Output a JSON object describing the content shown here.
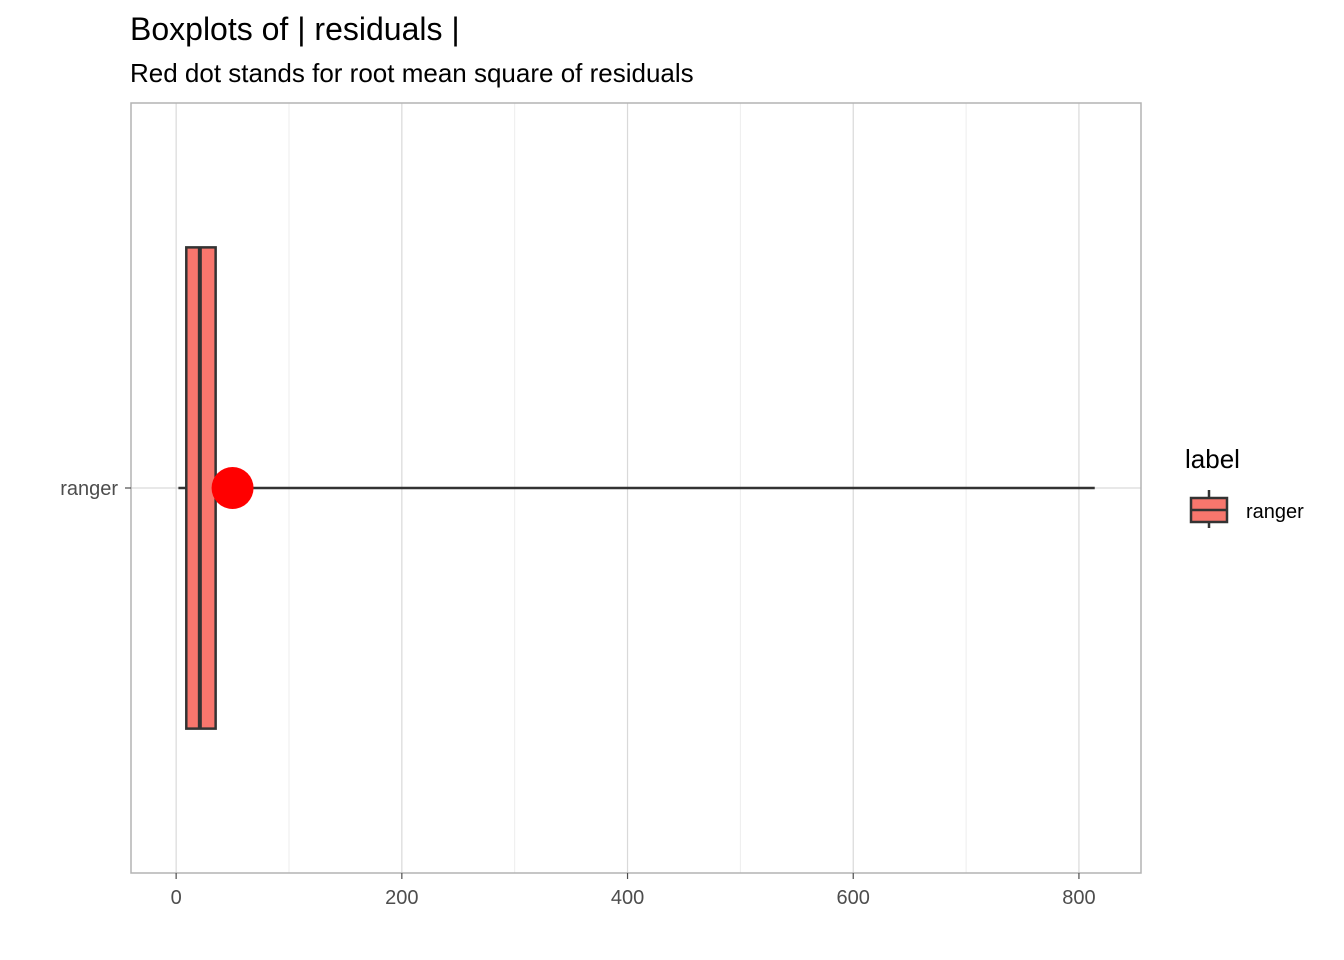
{
  "chart_data": {
    "type": "boxplot",
    "title": "Boxplots of | residuals |",
    "subtitle": "Red dot stands for root mean square of residuals",
    "xlabel": "",
    "ylabel": "",
    "xlim": [
      -40,
      855
    ],
    "x_ticks": [
      0,
      200,
      400,
      600,
      800
    ],
    "x_minor_ticks": [
      100,
      300,
      500,
      700
    ],
    "grid": true,
    "categories": [
      "ranger"
    ],
    "series": [
      {
        "name": "ranger",
        "whisker_low": 2,
        "q1": 9,
        "median": 21,
        "q3": 35,
        "whisker_high": 814,
        "rms": 50
      }
    ],
    "legend": {
      "title": "label",
      "position": "right",
      "entries": [
        "ranger"
      ]
    },
    "colors": {
      "box_fill": "#F8766D",
      "box_outline": "#333333",
      "rms_dot": "#FF0000",
      "grid_major": "#d9d9d9",
      "grid_minor": "#ededed",
      "panel_border": "#b3b3b3",
      "tick_label": "#4d4d4d"
    }
  }
}
